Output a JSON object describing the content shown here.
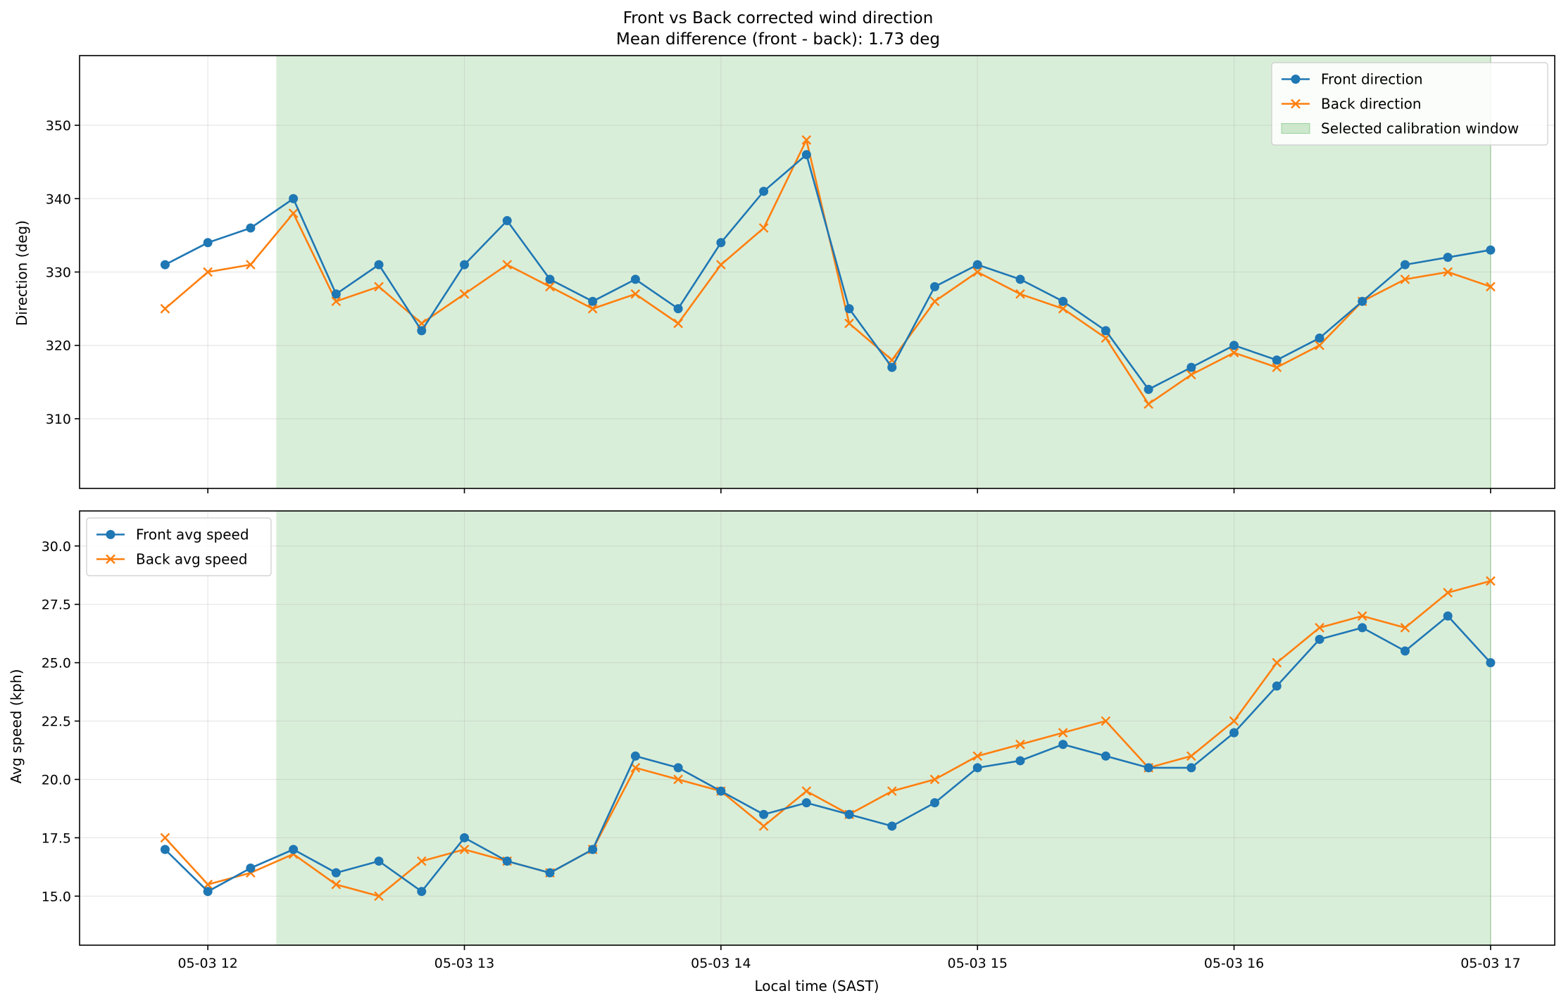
{
  "chart_data": [
    {
      "type": "line",
      "title": "Front vs Back corrected wind direction",
      "subtitle": "Mean difference (front - back): 1.73 deg",
      "xlabel": "",
      "ylabel": "Direction (deg)",
      "xlim": [
        "05-03 11:30",
        "05-03 17:15"
      ],
      "ylim": [
        300.5,
        359.5
      ],
      "x_ticks": [
        "05-03 12",
        "05-03 13",
        "05-03 14",
        "05-03 15",
        "05-03 16",
        "05-03 17"
      ],
      "y_ticks": [
        310,
        320,
        330,
        340,
        350
      ],
      "grid": true,
      "legend_position": "upper right",
      "shaded_region": {
        "label": "Selected calibration window",
        "from": "05-03 12:16",
        "to": "05-03 17:00",
        "color": "#2ca02c"
      },
      "x": [
        "11:50",
        "12:00",
        "12:10",
        "12:20",
        "12:30",
        "12:40",
        "12:50",
        "13:00",
        "13:10",
        "13:20",
        "13:30",
        "13:40",
        "13:50",
        "14:00",
        "14:10",
        "14:20",
        "14:30",
        "14:40",
        "14:50",
        "15:00",
        "15:10",
        "15:20",
        "15:30",
        "15:40",
        "15:50",
        "16:00",
        "16:10",
        "16:20",
        "16:30",
        "16:40",
        "16:50",
        "17:00"
      ],
      "series": [
        {
          "name": "Front direction",
          "color": "#1f77b4",
          "marker": "circle",
          "values": [
            331,
            334,
            336,
            340,
            327,
            331,
            322,
            331,
            337,
            329,
            326,
            329,
            325,
            334,
            341,
            346,
            325,
            317,
            328,
            331,
            329,
            326,
            322,
            314,
            317,
            320,
            318,
            321,
            326,
            331,
            332,
            333
          ]
        },
        {
          "name": "Back direction",
          "color": "#ff7f0e",
          "marker": "x",
          "values": [
            325,
            330,
            331,
            338,
            326,
            328,
            323,
            327,
            331,
            328,
            325,
            327,
            323,
            331,
            336,
            348,
            323,
            318,
            326,
            330,
            327,
            325,
            321,
            312,
            316,
            319,
            317,
            320,
            326,
            329,
            330,
            328
          ]
        }
      ]
    },
    {
      "type": "line",
      "title": "",
      "xlabel": "Local time (SAST)",
      "ylabel": "Avg speed (kph)",
      "xlim": [
        "05-03 11:30",
        "05-03 17:15"
      ],
      "ylim": [
        12.9,
        31.5
      ],
      "x_ticks": [
        "05-03 12",
        "05-03 13",
        "05-03 14",
        "05-03 15",
        "05-03 16",
        "05-03 17"
      ],
      "y_ticks": [
        "15.0",
        "17.5",
        "20.0",
        "22.5",
        "25.0",
        "27.5",
        "30.0"
      ],
      "grid": true,
      "legend_position": "upper left",
      "shaded_region": {
        "label": "Selected calibration window",
        "from": "05-03 12:16",
        "to": "05-03 17:00",
        "color": "#2ca02c"
      },
      "x": [
        "11:50",
        "12:00",
        "12:10",
        "12:20",
        "12:30",
        "12:40",
        "12:50",
        "13:00",
        "13:10",
        "13:20",
        "13:30",
        "13:40",
        "13:50",
        "14:00",
        "14:10",
        "14:20",
        "14:30",
        "14:40",
        "14:50",
        "15:00",
        "15:10",
        "15:20",
        "15:30",
        "15:40",
        "15:50",
        "16:00",
        "16:10",
        "16:20",
        "16:30",
        "16:40",
        "16:50",
        "17:00"
      ],
      "series": [
        {
          "name": "Front avg speed",
          "color": "#1f77b4",
          "marker": "circle",
          "values": [
            17.0,
            15.2,
            16.2,
            17.0,
            16.0,
            16.5,
            15.2,
            17.5,
            16.5,
            16.0,
            17.0,
            21.0,
            20.5,
            19.5,
            18.5,
            19.0,
            18.5,
            18.0,
            19.0,
            20.5,
            20.8,
            21.5,
            21.0,
            20.5,
            20.5,
            22.0,
            24.0,
            26.0,
            26.5,
            25.5,
            27.0,
            25.0
          ]
        },
        {
          "name": "Back avg speed",
          "color": "#ff7f0e",
          "marker": "x",
          "values": [
            17.5,
            15.5,
            16.0,
            16.8,
            15.5,
            15.0,
            16.5,
            17.0,
            16.5,
            16.0,
            17.0,
            20.5,
            20.0,
            19.5,
            18.0,
            19.5,
            18.5,
            19.5,
            20.0,
            21.0,
            21.5,
            22.0,
            22.5,
            20.5,
            21.0,
            22.5,
            25.0,
            26.5,
            27.0,
            26.5,
            28.0,
            28.5
          ]
        }
      ]
    }
  ]
}
